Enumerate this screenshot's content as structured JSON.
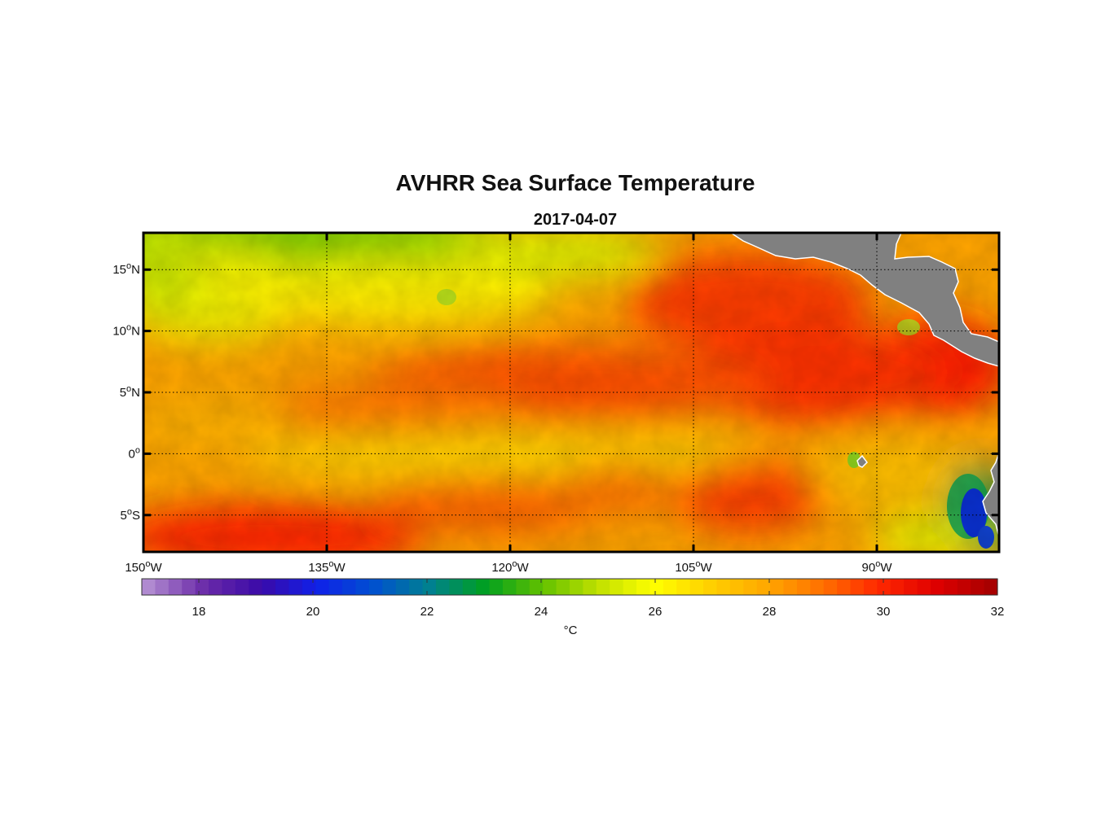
{
  "chart_data": {
    "type": "heatmap",
    "title": "AVHRR Sea Surface Temperature",
    "subtitle": "2017-04-07",
    "x_ticks": [
      {
        "value": -150,
        "label": "150",
        "suffix": "W"
      },
      {
        "value": -135,
        "label": "135",
        "suffix": "W"
      },
      {
        "value": -120,
        "label": "120",
        "suffix": "W"
      },
      {
        "value": -105,
        "label": "105",
        "suffix": "W"
      },
      {
        "value": -90,
        "label": "90",
        "suffix": "W"
      }
    ],
    "y_ticks": [
      {
        "value": 15,
        "label": "15",
        "suffix": "N"
      },
      {
        "value": 10,
        "label": "10",
        "suffix": "N"
      },
      {
        "value": 5,
        "label": "5",
        "suffix": "N"
      },
      {
        "value": 0,
        "label": "0",
        "suffix": ""
      },
      {
        "value": -5,
        "label": "5",
        "suffix": "S"
      }
    ],
    "degree_mark": "o",
    "xlim": [
      -150,
      -80
    ],
    "ylim": [
      -8,
      18
    ],
    "grid": true,
    "colorbar": {
      "label": "°C",
      "range": [
        17,
        32
      ],
      "ticks": [
        18,
        20,
        22,
        24,
        26,
        28,
        30,
        32
      ],
      "colormap": [
        "#b08ad0",
        "#6a2aa8",
        "#3a0aa8",
        "#1020e8",
        "#0050d0",
        "#008090",
        "#00a020",
        "#60c000",
        "#c0e000",
        "#ffff00",
        "#ffd000",
        "#ffa800",
        "#ff7000",
        "#ff2800",
        "#e00000",
        "#a80000"
      ]
    },
    "colors": {
      "land": "#808080",
      "frame": "#000000"
    }
  }
}
